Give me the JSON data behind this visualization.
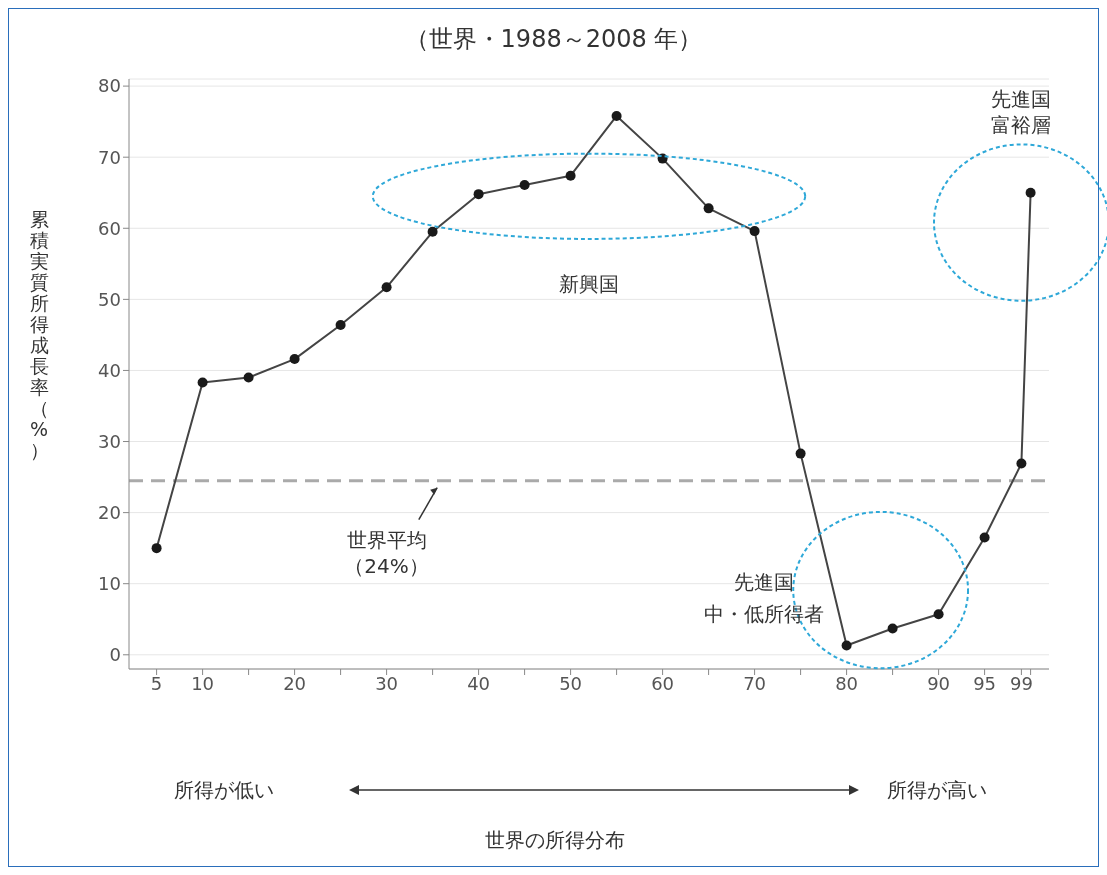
{
  "chart_data": {
    "type": "line",
    "title": "（世界・1988～2008 年）",
    "ylabel": "累積実質所得成長率（%）",
    "series": [
      {
        "color": "#444444",
        "x": [
          5,
          10,
          15,
          20,
          25,
          30,
          35,
          40,
          45,
          50,
          55,
          60,
          65,
          70,
          75,
          80,
          85,
          90,
          95,
          99,
          100
        ],
        "values": [
          15,
          38.3,
          39,
          41.6,
          46.4,
          51.7,
          59.5,
          64.8,
          66.1,
          67.4,
          75.8,
          69.8,
          62.8,
          59.6,
          28.3,
          1.3,
          3.7,
          5.7,
          16.5,
          26.9,
          65
        ]
      }
    ],
    "xlim": [
      2,
      102
    ],
    "ylim": [
      -2,
      81
    ],
    "xticks": [
      5,
      10,
      {
        "value": 15,
        "label": null
      },
      20,
      {
        "value": 25,
        "label": null
      },
      30,
      {
        "value": 35,
        "label": null
      },
      40,
      {
        "value": 45,
        "label": null
      },
      50,
      {
        "value": 55,
        "label": null
      },
      60,
      {
        "value": 65,
        "label": null
      },
      70,
      {
        "value": 75,
        "label": null
      },
      80,
      {
        "value": 85,
        "label": null
      },
      90,
      95,
      99,
      {
        "value": 100,
        "label": null
      }
    ],
    "yticks": [
      0,
      10,
      20,
      30,
      40,
      50,
      60,
      70,
      80
    ],
    "grid": "y",
    "marker": "circle",
    "line_style": "solid",
    "ref_lines": [
      {
        "axis": "y",
        "value": 24.5,
        "label": "世界平均（24%）",
        "color": "#aaaaaa",
        "line_style": "dashed"
      }
    ],
    "annotations": [
      "新興国",
      "先進国富裕層",
      "先進国",
      "中・低所得者",
      "所得が低い",
      "所得が高い",
      "世界の所得分布"
    ]
  }
}
